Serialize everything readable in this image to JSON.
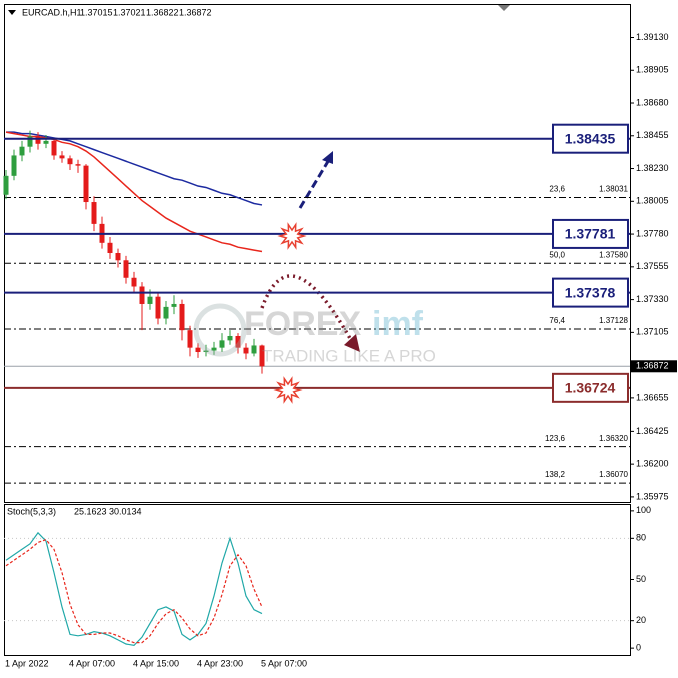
{
  "chart_data": [
    {
      "type": "candlestick",
      "header": {
        "symbol": "EURCAD.h,H1",
        "ohlc": [
          1.37015,
          1.37021,
          1.36822,
          1.36872
        ]
      },
      "categories": [
        "1 Apr 2022",
        null,
        null,
        null,
        null,
        null,
        null,
        null,
        "4 Apr 07:00",
        null,
        null,
        null,
        null,
        null,
        null,
        null,
        "4 Apr 15:00",
        null,
        null,
        null,
        null,
        null,
        null,
        null,
        "4 Apr 23:00",
        null,
        null,
        null,
        null,
        null,
        null,
        null,
        "5 Apr 07:00"
      ],
      "candles": {
        "open": [
          1.3805,
          1.3818,
          1.3832,
          1.3838,
          1.3845,
          1.384,
          1.3842,
          1.3832,
          1.383,
          1.3826,
          1.3825,
          1.38,
          1.3785,
          1.3772,
          1.3765,
          1.376,
          1.3748,
          1.3742,
          1.373,
          1.3735,
          1.372,
          1.3728,
          1.373,
          1.3712,
          1.37,
          1.3697,
          1.3698,
          1.37,
          1.3705,
          1.3708,
          1.37,
          1.3696,
          1.37015
        ],
        "high": [
          1.3822,
          1.3836,
          1.3842,
          1.3849,
          1.3848,
          1.3846,
          1.3844,
          1.3835,
          1.3832,
          1.3829,
          1.3826,
          1.3804,
          1.379,
          1.3776,
          1.3768,
          1.3763,
          1.3752,
          1.3745,
          1.374,
          1.3738,
          1.3732,
          1.3736,
          1.3733,
          1.3715,
          1.3703,
          1.3702,
          1.3704,
          1.371,
          1.3712,
          1.371,
          1.3703,
          1.3706,
          1.37021
        ],
        "low": [
          1.3802,
          1.3815,
          1.3828,
          1.3834,
          1.3836,
          1.3837,
          1.3829,
          1.3827,
          1.3822,
          1.382,
          1.3795,
          1.378,
          1.3768,
          1.3761,
          1.3755,
          1.3744,
          1.3738,
          1.3712,
          1.3726,
          1.3716,
          1.3716,
          1.3723,
          1.3705,
          1.3694,
          1.3693,
          1.3694,
          1.3695,
          1.3697,
          1.3702,
          1.3696,
          1.3692,
          1.3694,
          1.36822
        ],
        "close": [
          1.3818,
          1.3832,
          1.3838,
          1.3845,
          1.384,
          1.3842,
          1.3832,
          1.383,
          1.3826,
          1.3825,
          1.38,
          1.3785,
          1.3772,
          1.3765,
          1.376,
          1.3748,
          1.3742,
          1.373,
          1.3735,
          1.372,
          1.3728,
          1.373,
          1.3712,
          1.37,
          1.3697,
          1.3698,
          1.37,
          1.3705,
          1.3708,
          1.37,
          1.3696,
          1.37015,
          1.36872
        ]
      },
      "up_color": "#2e9e3e",
      "down_color": "#e41b1b",
      "series": [
        {
          "color": "#1c2aa0",
          "values": [
            1.3848,
            1.3848,
            1.3847,
            1.3847,
            1.3846,
            1.3845,
            1.3844,
            1.3843,
            1.3842,
            1.384,
            1.3838,
            1.3836,
            1.3834,
            1.3832,
            1.383,
            1.3828,
            1.3826,
            1.3824,
            1.3822,
            1.382,
            1.3818,
            1.3816,
            1.3815,
            1.3813,
            1.3811,
            1.381,
            1.3808,
            1.3806,
            1.3805,
            1.3803,
            1.3801,
            1.3799,
            1.3798
          ]
        },
        {
          "color": "#e8261c",
          "values": [
            1.3848,
            1.3847,
            1.3846,
            1.3845,
            1.3845,
            1.3844,
            1.3843,
            1.3841,
            1.384,
            1.3838,
            1.3835,
            1.3831,
            1.3826,
            1.3821,
            1.3816,
            1.3811,
            1.3806,
            1.3801,
            1.3797,
            1.3793,
            1.3789,
            1.3786,
            1.3783,
            1.378,
            1.3778,
            1.3776,
            1.3774,
            1.3772,
            1.3771,
            1.3769,
            1.3768,
            1.3767,
            1.3766
          ]
        }
      ],
      "ylim": [
        1.3594,
        1.3936
      ],
      "yticks": [
        {
          "value": 1.3913,
          "label": "1.39130"
        },
        1.38905,
        {
          "value": 1.3868,
          "label": "1.38680"
        },
        1.38455,
        {
          "value": 1.3823,
          "label": "1.38230"
        },
        1.38005,
        {
          "value": 1.3778,
          "label": "1.37780"
        },
        1.37555,
        {
          "value": 1.3733,
          "label": "1.37330"
        },
        1.37105,
        1.36655,
        1.36425,
        {
          "value": 1.362,
          "label": "1.36200"
        },
        1.35975
      ],
      "current_price": 1.36872,
      "key_levels": [
        {
          "value": 1.38435,
          "color": "#1a1f7a"
        },
        {
          "value": 1.37781,
          "color": "#1a1f7a"
        },
        {
          "value": 1.37378,
          "color": "#1a1f7a"
        },
        {
          "value": 1.36724,
          "color": "#8b2c2c"
        }
      ],
      "fib_levels": [
        {
          "ratio": "23,6",
          "value": 1.38031
        },
        {
          "ratio": "50,0",
          "value": 1.3758,
          "label": "1.37580"
        },
        {
          "ratio": "76,4",
          "value": 1.37128
        },
        {
          "ratio": "123,6",
          "value": 1.3632,
          "label": "1.36320"
        },
        {
          "ratio": "138,2",
          "value": 1.3607,
          "label": "1.36070"
        }
      ],
      "watermark": {
        "brand": "FOREX",
        "brand_suffix": "imf",
        "tagline": "TRADING LIKE A PRO"
      }
    },
    {
      "type": "line",
      "title": "Stoch(5,3,3)",
      "readout": [
        25.1623,
        30.0134
      ],
      "series": [
        {
          "color": "#20a8a8",
          "values": [
            64,
            68,
            72,
            76,
            84,
            78,
            55,
            30,
            10,
            9,
            10,
            12,
            11,
            9,
            6,
            3,
            2,
            8,
            18,
            28,
            30,
            27,
            10,
            6,
            10,
            18,
            38,
            62,
            80,
            62,
            38,
            28,
            25.1623
          ]
        },
        {
          "color": "#e8261c",
          "dashed": true,
          "values": [
            60,
            64,
            68,
            72,
            77,
            79,
            72,
            55,
            32,
            17,
            10,
            10,
            11,
            11,
            9,
            6,
            4,
            4,
            9,
            18,
            25,
            28,
            22,
            14,
            9,
            11,
            22,
            39,
            60,
            68,
            60,
            43,
            30.0134
          ]
        }
      ],
      "ylim": [
        -5,
        105
      ],
      "yticks": [
        100,
        80,
        50,
        20,
        0
      ],
      "levels": [
        80,
        20
      ]
    }
  ]
}
